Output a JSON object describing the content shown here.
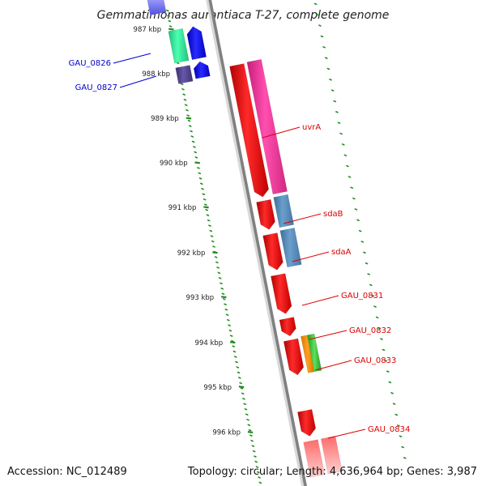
{
  "title": "Gemmatimonas aurantiaca T-27, complete genome",
  "footer": {
    "accession": "Accession: NC_012489",
    "summary": "Topology: circular; Length: 4,636,964 bp; Genes: 3,987"
  },
  "colors": {
    "forward_gene_label": "#dd0000",
    "reverse_gene_label": "#0000cc",
    "backbone": "#808080",
    "tick": "#228b22"
  },
  "kbp_ticks": [
    "987 kbp",
    "988 kbp",
    "989 kbp",
    "990 kbp",
    "991 kbp",
    "992 kbp",
    "993 kbp",
    "994 kbp",
    "995 kbp",
    "996 kbp"
  ],
  "forward_gene_labels": [
    "uvrA",
    "sdaB",
    "sdaA",
    "GAU_0831",
    "GAU_0832",
    "GAU_0833",
    "GAU_0834"
  ],
  "reverse_gene_labels": [
    "GAU_0826",
    "GAU_0827"
  ]
}
